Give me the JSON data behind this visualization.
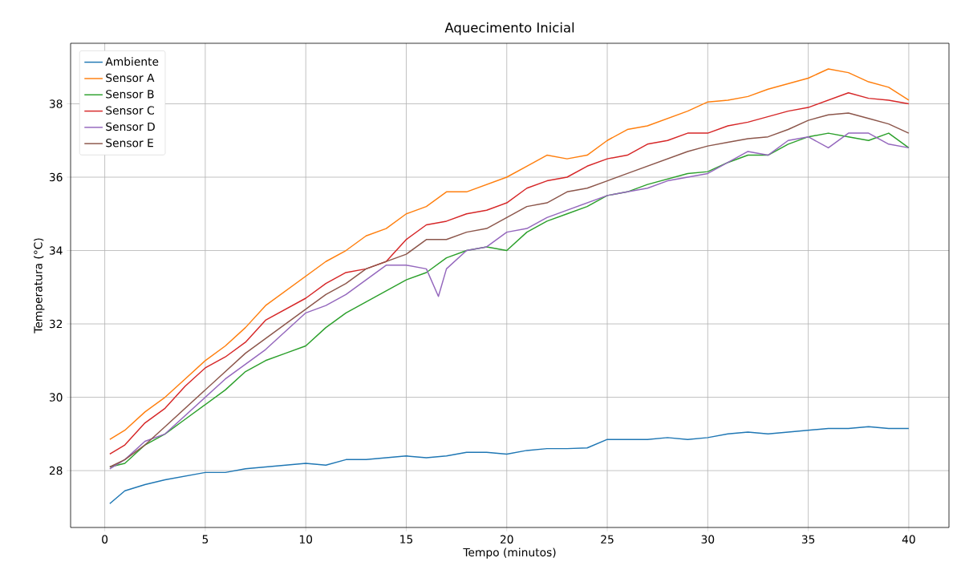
{
  "chart_data": {
    "type": "line",
    "title": "Aquecimento Inicial",
    "xlabel": "Tempo (minutos)",
    "ylabel": "Temperatura (°C)",
    "x": [
      0.25,
      1,
      2,
      3,
      4,
      5,
      6,
      7,
      8,
      9,
      10,
      11,
      12,
      13,
      14,
      15,
      16,
      17,
      18,
      19,
      20,
      21,
      22,
      23,
      24,
      25,
      26,
      27,
      28,
      29,
      30,
      31,
      32,
      33,
      34,
      35,
      36,
      37,
      38,
      39,
      40
    ],
    "series": [
      {
        "name": "Ambiente",
        "color": "#1f77b4",
        "values": [
          27.1,
          27.45,
          27.62,
          27.75,
          27.85,
          27.95,
          27.95,
          28.05,
          28.1,
          28.15,
          28.2,
          28.15,
          28.3,
          28.3,
          28.35,
          28.4,
          28.35,
          28.4,
          28.5,
          28.5,
          28.45,
          28.55,
          28.6,
          28.6,
          28.62,
          28.85,
          28.85,
          28.85,
          28.9,
          28.85,
          28.9,
          29.0,
          29.05,
          29.0,
          29.05,
          29.1,
          29.15,
          29.15,
          29.2,
          29.15,
          29.15
        ]
      },
      {
        "name": "Sensor A",
        "color": "#ff7f0e",
        "values": [
          28.85,
          29.1,
          29.6,
          30.0,
          30.5,
          31.0,
          31.4,
          31.9,
          32.5,
          32.9,
          33.3,
          33.7,
          34.0,
          34.4,
          34.6,
          35.0,
          35.2,
          35.6,
          35.6,
          35.8,
          36.0,
          36.3,
          36.6,
          36.5,
          36.6,
          37.0,
          37.3,
          37.4,
          37.6,
          37.8,
          38.05,
          38.1,
          38.2,
          38.4,
          38.55,
          38.7,
          38.95,
          38.85,
          38.6,
          38.45,
          38.1
        ]
      },
      {
        "name": "Sensor B",
        "color": "#2ca02c",
        "values": [
          28.1,
          28.2,
          28.7,
          29.0,
          29.4,
          29.8,
          30.2,
          30.7,
          31.0,
          31.2,
          31.4,
          31.9,
          32.3,
          32.6,
          32.9,
          33.2,
          33.4,
          33.8,
          34.0,
          34.1,
          34.0,
          34.5,
          34.8,
          35.0,
          35.2,
          35.5,
          35.6,
          35.8,
          35.95,
          36.1,
          36.15,
          36.4,
          36.6,
          36.6,
          36.9,
          37.1,
          37.2,
          37.1,
          37.0,
          37.2,
          36.8
        ]
      },
      {
        "name": "Sensor C",
        "color": "#d62728",
        "values": [
          28.45,
          28.7,
          29.3,
          29.7,
          30.3,
          30.8,
          31.1,
          31.5,
          32.1,
          32.4,
          32.7,
          33.1,
          33.4,
          33.5,
          33.7,
          34.3,
          34.7,
          34.8,
          35.0,
          35.1,
          35.3,
          35.7,
          35.9,
          36.0,
          36.3,
          36.5,
          36.6,
          36.9,
          37.0,
          37.2,
          37.2,
          37.4,
          37.5,
          37.65,
          37.8,
          37.9,
          38.1,
          38.3,
          38.15,
          38.1,
          38.0
        ]
      },
      {
        "name": "Sensor D",
        "color": "#9467bd",
        "x": [
          0.25,
          1,
          2,
          3,
          4,
          5,
          6,
          7,
          8,
          9,
          10,
          11,
          12,
          13,
          14,
          15,
          16,
          16.6,
          17,
          18,
          19,
          20,
          21,
          22,
          23,
          24,
          25,
          26,
          27,
          28,
          29,
          30,
          31,
          32,
          33,
          34,
          35,
          36,
          37,
          38,
          39,
          40
        ],
        "values": [
          28.05,
          28.3,
          28.8,
          29.0,
          29.5,
          30.0,
          30.5,
          30.9,
          31.3,
          31.8,
          32.3,
          32.5,
          32.8,
          33.2,
          33.6,
          33.6,
          33.5,
          32.75,
          33.5,
          34.0,
          34.1,
          34.5,
          34.6,
          34.9,
          35.1,
          35.3,
          35.5,
          35.6,
          35.7,
          35.9,
          36.0,
          36.1,
          36.4,
          36.7,
          36.6,
          37.0,
          37.1,
          36.8,
          37.2,
          37.2,
          36.9,
          36.8
        ]
      },
      {
        "name": "Sensor E",
        "color": "#8c564b",
        "values": [
          28.1,
          28.3,
          28.7,
          29.2,
          29.7,
          30.2,
          30.7,
          31.2,
          31.6,
          32.0,
          32.4,
          32.8,
          33.1,
          33.5,
          33.7,
          33.9,
          34.3,
          34.3,
          34.5,
          34.6,
          34.9,
          35.2,
          35.3,
          35.6,
          35.7,
          35.9,
          36.1,
          36.3,
          36.5,
          36.7,
          36.85,
          36.95,
          37.05,
          37.1,
          37.3,
          37.55,
          37.7,
          37.75,
          37.6,
          37.45,
          37.2
        ]
      }
    ],
    "xlim": [
      -1.7,
      42
    ],
    "ylim": [
      26.45,
      39.65
    ],
    "xticks": [
      0,
      5,
      10,
      15,
      20,
      25,
      30,
      35,
      40
    ],
    "yticks": [
      28,
      30,
      32,
      34,
      36,
      38
    ],
    "grid": true,
    "legend": "top left",
    "marker": "none",
    "line_style": "solid"
  }
}
